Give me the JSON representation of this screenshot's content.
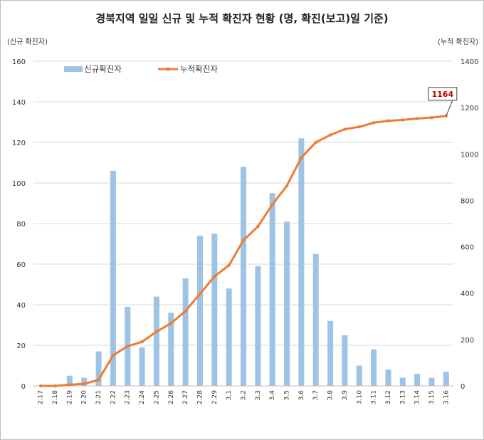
{
  "chart_data": {
    "type": "bar",
    "title": "경북지역 일일 신규 및 누적 확진자 현황 (명, 확진(보고)일 기준)",
    "ylabel_left": "(신규 확진자)",
    "ylabel_right": "(누적 확진자)",
    "ylim_left": [
      0,
      160
    ],
    "yticks_left": [
      0,
      20,
      40,
      60,
      80,
      100,
      120,
      140,
      160
    ],
    "ylim_right": [
      0,
      1400
    ],
    "yticks_right": [
      0,
      200,
      400,
      600,
      800,
      1000,
      1200,
      1400
    ],
    "grid": true,
    "legend_position": "top-left",
    "categories": [
      "2.17",
      "2.18",
      "2.19",
      "2.20",
      "2.21",
      "2.22",
      "2.23",
      "2.24",
      "2.25",
      "2.26",
      "2.27",
      "2.28",
      "2.29",
      "3.1",
      "3.2",
      "3.3",
      "3.4",
      "3.5",
      "3.6",
      "3.7",
      "3.8",
      "3.9",
      "3.10",
      "3.11",
      "3.12",
      "3.13",
      "3.14",
      "3.15",
      "3.16"
    ],
    "series": [
      {
        "name": "신규확진자",
        "kind": "bar",
        "axis": "left",
        "color": "#9dc3e6",
        "values": [
          0,
          0,
          5,
          4,
          17,
          106,
          39,
          19,
          44,
          36,
          53,
          74,
          75,
          48,
          108,
          59,
          95,
          81,
          122,
          65,
          32,
          25,
          10,
          18,
          8,
          4,
          6,
          4,
          7
        ]
      },
      {
        "name": "누적확진자",
        "kind": "line",
        "axis": "right",
        "color": "#ed7d31",
        "values": [
          0,
          0,
          5,
          9,
          26,
          132,
          171,
          190,
          234,
          270,
          323,
          397,
          472,
          520,
          628,
          687,
          782,
          863,
          985,
          1050,
          1082,
          1107,
          1117,
          1135,
          1143,
          1147,
          1153,
          1157,
          1164
        ]
      }
    ],
    "annotation": {
      "text": "1164",
      "series": "누적확진자",
      "category": "3.16"
    }
  }
}
